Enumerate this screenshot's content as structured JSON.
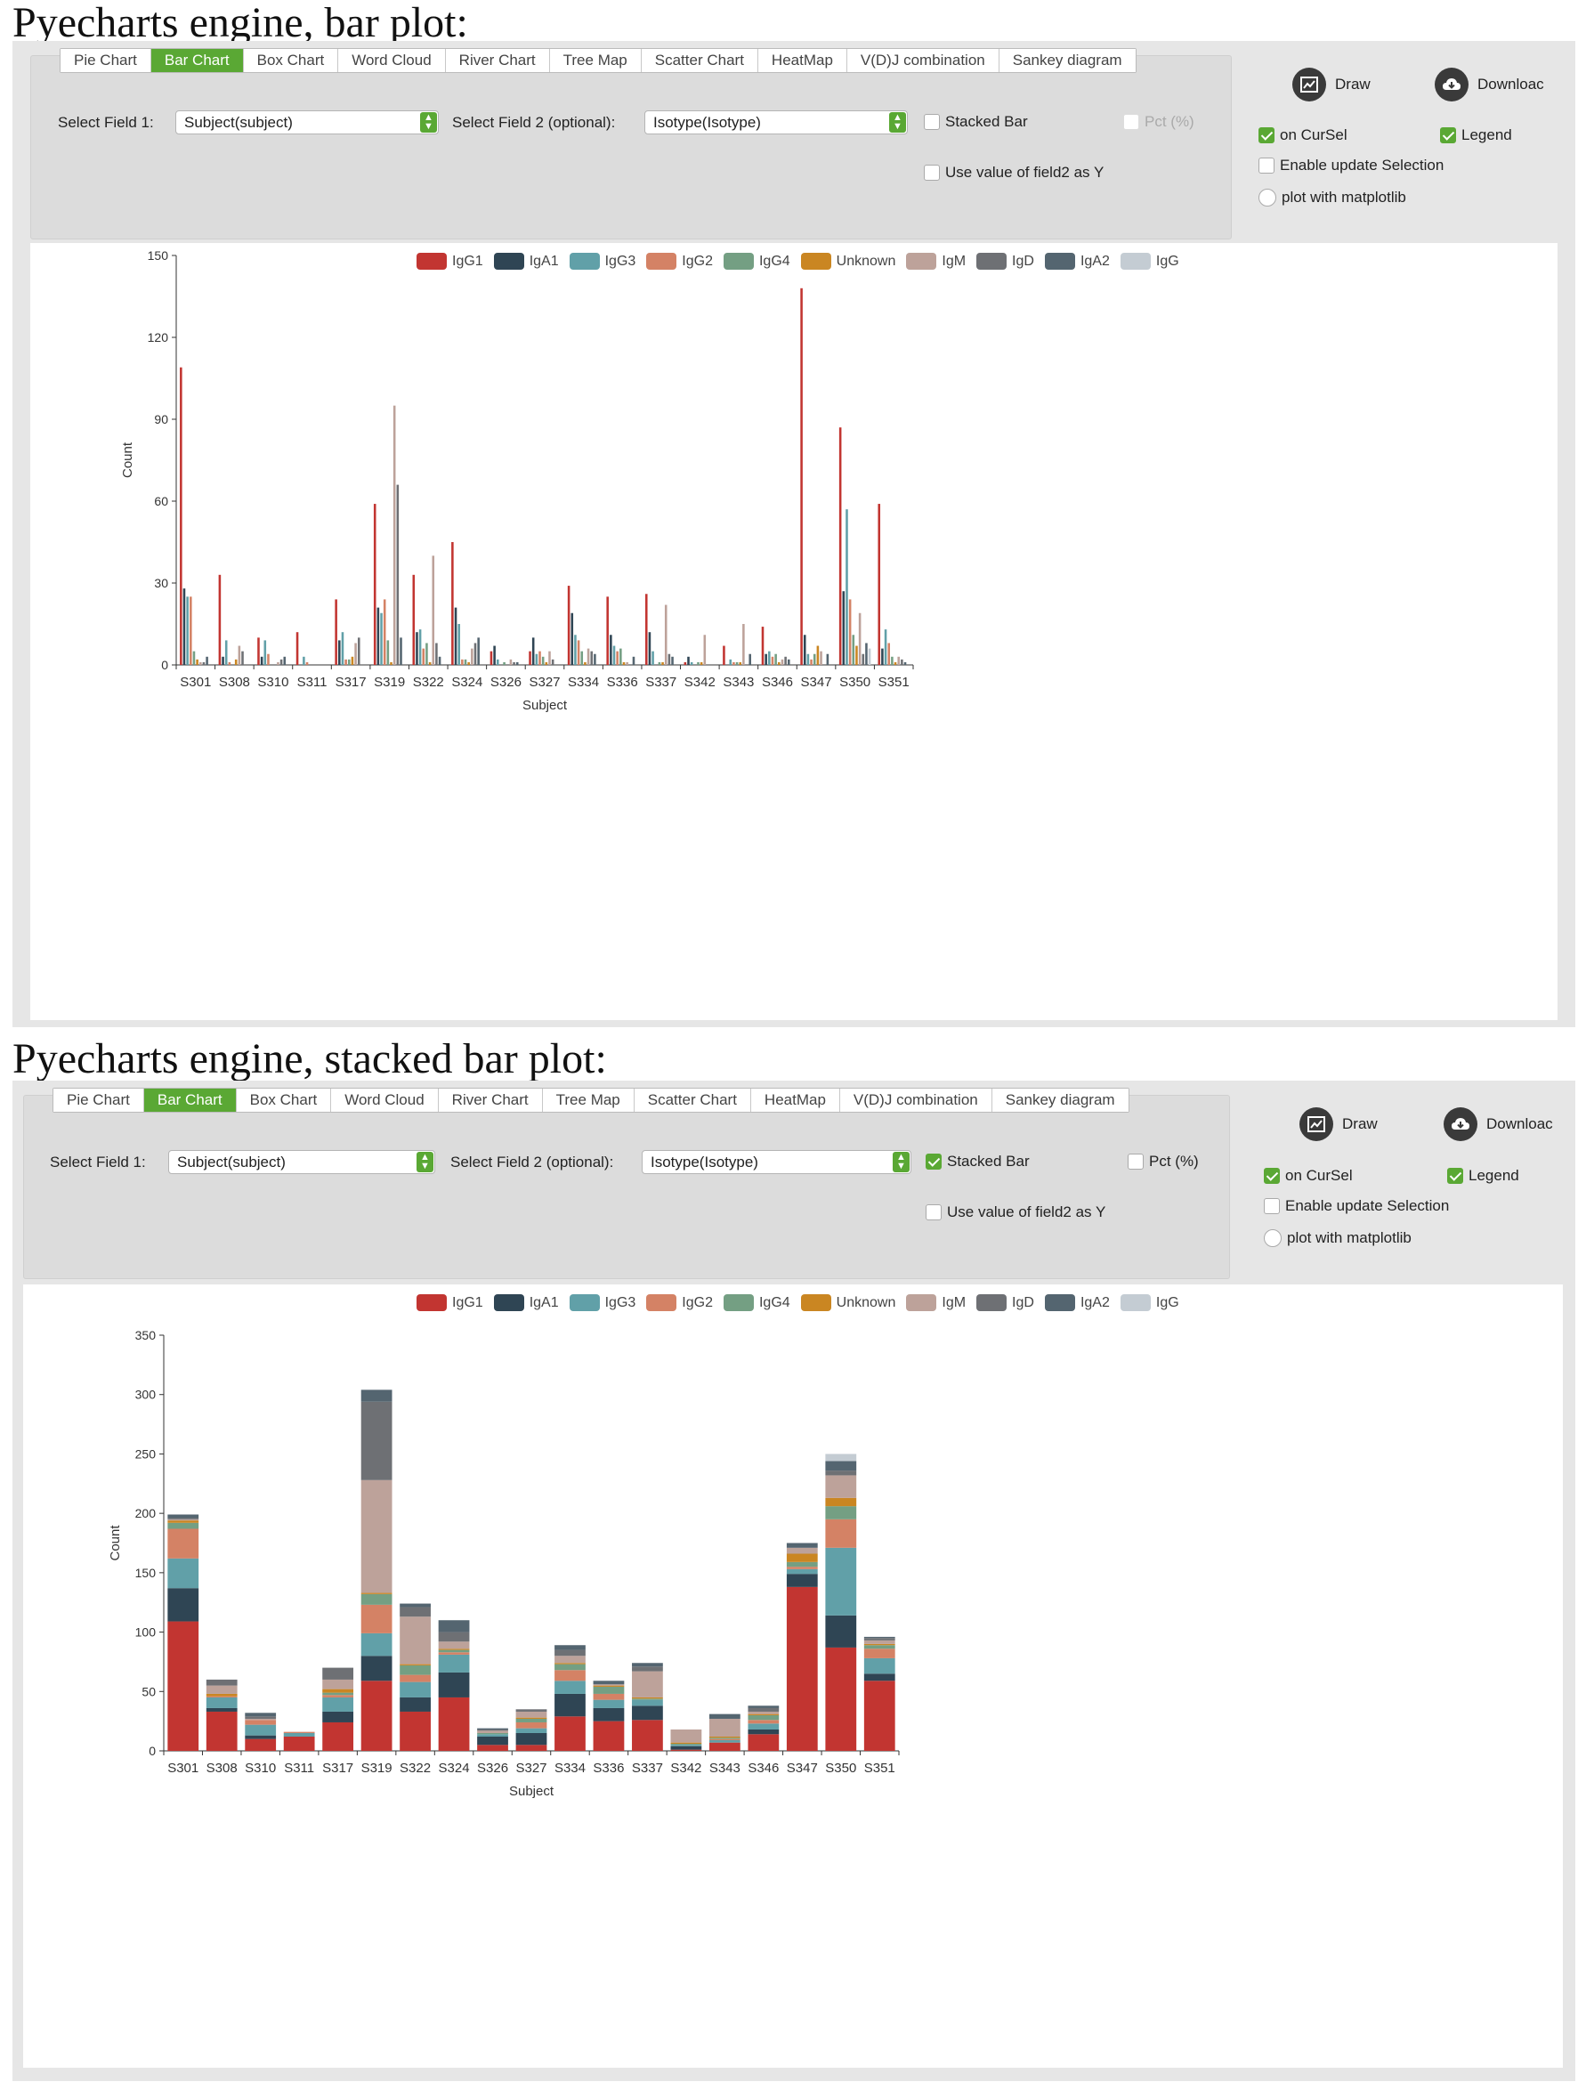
{
  "sections": [
    {
      "title": "Pyecharts engine, bar plot:",
      "tabs": [
        "Pie Chart",
        "Bar Chart",
        "Box Chart",
        "Word Cloud",
        "River Chart",
        "Tree Map",
        "Scatter Chart",
        "HeatMap",
        "V(D)J combination",
        "Sankey diagram"
      ],
      "active_tab": "Bar Chart",
      "field1_label": "Select Field 1:",
      "field1_value": "Subject(subject)",
      "field2_label": "Select Field 2 (optional):",
      "field2_value": "Isotype(Isotype)",
      "stacked_label": "Stacked Bar",
      "stacked_checked": false,
      "pct_label": "Pct (%)",
      "use_value_label": "Use value of field2 as Y",
      "draw_label": "Draw",
      "download_label": "Downloac",
      "on_cursel_label": "on CurSel",
      "legend_label": "Legend",
      "enable_update_label": "Enable update Selection",
      "matplotlib_label": "plot with matplotlib"
    },
    {
      "title": "Pyecharts engine, stacked bar plot:",
      "tabs": [
        "Pie Chart",
        "Bar Chart",
        "Box Chart",
        "Word Cloud",
        "River Chart",
        "Tree Map",
        "Scatter Chart",
        "HeatMap",
        "V(D)J combination",
        "Sankey diagram"
      ],
      "active_tab": "Bar Chart",
      "field1_label": "Select Field 1:",
      "field1_value": "Subject(subject)",
      "field2_label": "Select Field 2 (optional):",
      "field2_value": "Isotype(Isotype)",
      "stacked_label": "Stacked Bar",
      "stacked_checked": true,
      "pct_label": "Pct (%)",
      "use_value_label": "Use value of field2 as Y",
      "draw_label": "Draw",
      "download_label": "Downloac",
      "on_cursel_label": "on CurSel",
      "legend_label": "Legend",
      "enable_update_label": "Enable update Selection",
      "matplotlib_label": "plot with matplotlib"
    }
  ],
  "chart_data": [
    {
      "type": "bar",
      "stacked": false,
      "legend_position": "top",
      "xlabel": "Subject",
      "ylabel": "Count",
      "ylim": [
        0,
        150
      ],
      "yticks": [
        0,
        30,
        60,
        90,
        120,
        150
      ],
      "categories": [
        "S301",
        "S308",
        "S310",
        "S311",
        "S317",
        "S319",
        "S322",
        "S324",
        "S326",
        "S327",
        "S334",
        "S336",
        "S337",
        "S342",
        "S343",
        "S346",
        "S347",
        "S350",
        "S351"
      ],
      "series": [
        {
          "name": "IgG1",
          "color": "#c23531",
          "values": [
            109,
            33,
            10,
            12,
            24,
            59,
            33,
            45,
            5,
            5,
            29,
            25,
            26,
            1,
            7,
            14,
            138,
            87,
            59
          ]
        },
        {
          "name": "IgA1",
          "color": "#2f4554",
          "values": [
            28,
            3,
            3,
            0,
            9,
            21,
            12,
            21,
            7,
            10,
            19,
            11,
            12,
            3,
            0,
            4,
            11,
            27,
            6
          ]
        },
        {
          "name": "IgG3",
          "color": "#61a0a8",
          "values": [
            25,
            9,
            9,
            3,
            12,
            19,
            13,
            15,
            2,
            4,
            11,
            7,
            5,
            1,
            2,
            5,
            4,
            57,
            13
          ]
        },
        {
          "name": "IgG2",
          "color": "#d48265",
          "values": [
            25,
            1,
            4,
            1,
            2,
            24,
            6,
            2,
            0,
            5,
            9,
            5,
            0,
            0,
            1,
            3,
            2,
            24,
            8
          ]
        },
        {
          "name": "IgG4",
          "color": "#749f83",
          "values": [
            5,
            0,
            0,
            0,
            2,
            9,
            8,
            2,
            1,
            3,
            5,
            6,
            1,
            1,
            1,
            4,
            4,
            11,
            3
          ]
        },
        {
          "name": "Unknown",
          "color": "#ca8622",
          "values": [
            2,
            2,
            0,
            0,
            3,
            1,
            1,
            1,
            0,
            1,
            1,
            1,
            1,
            1,
            1,
            1,
            7,
            7,
            1
          ]
        },
        {
          "name": "IgM",
          "color": "#bda29a",
          "values": [
            1,
            7,
            1,
            0,
            8,
            95,
            40,
            6,
            2,
            5,
            6,
            1,
            22,
            11,
            15,
            2,
            5,
            19,
            3
          ]
        },
        {
          "name": "IgD",
          "color": "#6e7074",
          "values": [
            1,
            5,
            2,
            0,
            10,
            66,
            8,
            8,
            1,
            2,
            5,
            0,
            4,
            0,
            0,
            3,
            0,
            4,
            2
          ]
        },
        {
          "name": "IgA2",
          "color": "#546570",
          "values": [
            3,
            0,
            3,
            0,
            0,
            10,
            3,
            10,
            1,
            0,
            4,
            3,
            3,
            0,
            4,
            2,
            4,
            8,
            1
          ]
        },
        {
          "name": "IgG",
          "color": "#c4ccd3",
          "values": [
            0,
            0,
            0,
            0,
            0,
            0,
            0,
            0,
            0,
            0,
            0,
            0,
            0,
            0,
            0,
            0,
            0,
            6,
            0
          ]
        }
      ]
    },
    {
      "type": "bar",
      "stacked": true,
      "legend_position": "top",
      "xlabel": "Subject",
      "ylabel": "Count",
      "ylim": [
        0,
        350
      ],
      "yticks": [
        0,
        50,
        100,
        150,
        200,
        250,
        300,
        350
      ],
      "categories": [
        "S301",
        "S308",
        "S310",
        "S311",
        "S317",
        "S319",
        "S322",
        "S324",
        "S326",
        "S327",
        "S334",
        "S336",
        "S337",
        "S342",
        "S343",
        "S346",
        "S347",
        "S350",
        "S351"
      ],
      "series": [
        {
          "name": "IgG1",
          "color": "#c23531",
          "values": [
            109,
            33,
            10,
            12,
            24,
            59,
            33,
            45,
            5,
            5,
            29,
            25,
            26,
            1,
            7,
            14,
            138,
            87,
            59
          ]
        },
        {
          "name": "IgA1",
          "color": "#2f4554",
          "values": [
            28,
            3,
            3,
            0,
            9,
            21,
            12,
            21,
            7,
            10,
            19,
            11,
            12,
            3,
            0,
            4,
            11,
            27,
            6
          ]
        },
        {
          "name": "IgG3",
          "color": "#61a0a8",
          "values": [
            25,
            9,
            9,
            3,
            12,
            19,
            13,
            15,
            2,
            4,
            11,
            7,
            5,
            1,
            2,
            5,
            4,
            57,
            13
          ]
        },
        {
          "name": "IgG2",
          "color": "#d48265",
          "values": [
            25,
            1,
            4,
            1,
            2,
            24,
            6,
            2,
            0,
            5,
            9,
            5,
            0,
            0,
            1,
            3,
            2,
            24,
            8
          ]
        },
        {
          "name": "IgG4",
          "color": "#749f83",
          "values": [
            5,
            0,
            0,
            0,
            2,
            9,
            8,
            2,
            1,
            3,
            5,
            6,
            1,
            1,
            1,
            4,
            4,
            11,
            3
          ]
        },
        {
          "name": "Unknown",
          "color": "#ca8622",
          "values": [
            2,
            2,
            0,
            0,
            3,
            1,
            1,
            1,
            0,
            1,
            1,
            1,
            1,
            1,
            1,
            1,
            7,
            7,
            1
          ]
        },
        {
          "name": "IgM",
          "color": "#bda29a",
          "values": [
            1,
            7,
            1,
            0,
            8,
            95,
            40,
            6,
            2,
            5,
            6,
            1,
            22,
            11,
            15,
            2,
            5,
            19,
            3
          ]
        },
        {
          "name": "IgD",
          "color": "#6e7074",
          "values": [
            1,
            5,
            2,
            0,
            10,
            66,
            8,
            8,
            1,
            2,
            5,
            0,
            4,
            0,
            0,
            3,
            0,
            4,
            2
          ]
        },
        {
          "name": "IgA2",
          "color": "#546570",
          "values": [
            3,
            0,
            3,
            0,
            0,
            10,
            3,
            10,
            1,
            0,
            4,
            3,
            3,
            0,
            4,
            2,
            4,
            8,
            1
          ]
        },
        {
          "name": "IgG",
          "color": "#c4ccd3",
          "values": [
            0,
            0,
            0,
            0,
            0,
            0,
            0,
            0,
            0,
            0,
            0,
            0,
            0,
            0,
            0,
            0,
            0,
            6,
            0
          ]
        }
      ]
    }
  ]
}
